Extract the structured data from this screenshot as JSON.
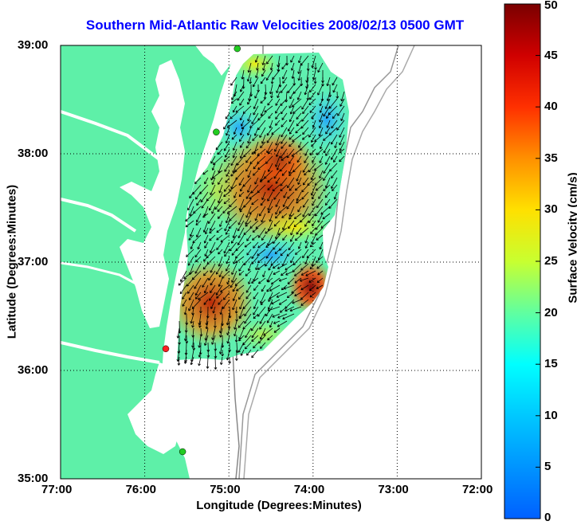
{
  "title": "Southern Mid-Atlantic Raw Velocities 2008/02/13 0500 GMT",
  "x_axis_label": "Longitude (Degrees:Minutes)",
  "y_axis_label": "Latitude (Degrees:Minutes)",
  "colorbar_label": "Surface Velocity (cm/s)",
  "lon_ticks": [
    "77:00",
    "76:00",
    "75:00",
    "74:00",
    "73:00",
    "72:00"
  ],
  "lat_ticks": [
    "39:00",
    "38:00",
    "37:00",
    "36:00",
    "35:00"
  ],
  "colorbar_ticks": [
    "0",
    "5",
    "10",
    "15",
    "20",
    "25",
    "30",
    "35",
    "40",
    "45",
    "50"
  ],
  "colors": {
    "land": "#5ef0a8",
    "title": "#0000ff",
    "station_green": "#22cc22",
    "station_red": "#ff2020"
  },
  "map_data": {
    "lon_range": [
      -77.0,
      -72.0
    ],
    "lat_range": [
      35.0,
      39.0
    ],
    "velocity_range_cm_s": [
      0,
      50
    ],
    "stations": [
      {
        "lon": -74.9,
        "lat": 38.97,
        "status": "green"
      },
      {
        "lon": -75.15,
        "lat": 38.2,
        "status": "green"
      },
      {
        "lon": -75.75,
        "lat": 36.2,
        "status": "red"
      },
      {
        "lon": -75.55,
        "lat": 35.25,
        "status": "green"
      }
    ]
  }
}
